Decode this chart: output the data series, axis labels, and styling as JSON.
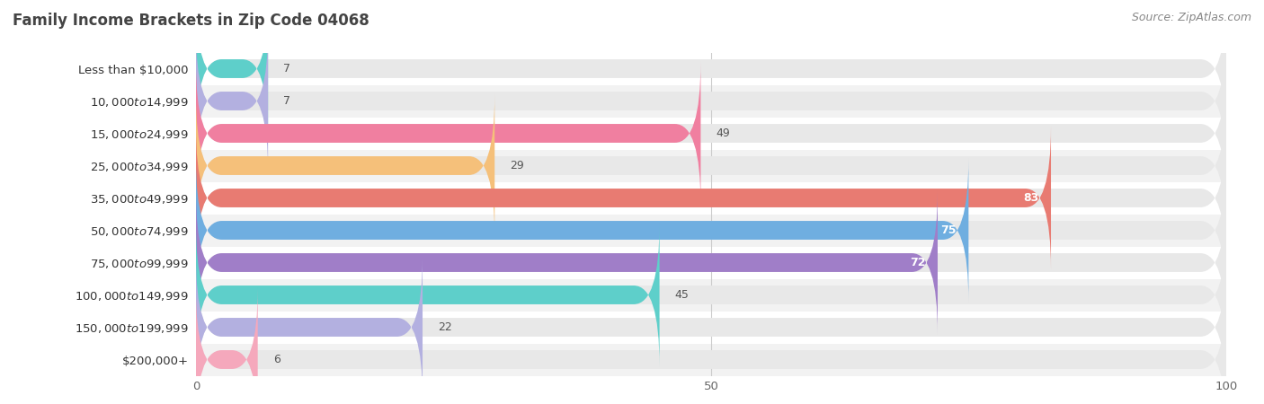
{
  "title": "Family Income Brackets in Zip Code 04068",
  "source": "Source: ZipAtlas.com",
  "categories": [
    "Less than $10,000",
    "$10,000 to $14,999",
    "$15,000 to $24,999",
    "$25,000 to $34,999",
    "$35,000 to $49,999",
    "$50,000 to $74,999",
    "$75,000 to $99,999",
    "$100,000 to $149,999",
    "$150,000 to $199,999",
    "$200,000+"
  ],
  "values": [
    7,
    7,
    49,
    29,
    83,
    75,
    72,
    45,
    22,
    6
  ],
  "bar_colors": [
    "#5ecfca",
    "#b3b0e0",
    "#f07fa0",
    "#f5c07a",
    "#e87b72",
    "#6faee0",
    "#a07ec8",
    "#5ecfca",
    "#b3b0e0",
    "#f5a8bc"
  ],
  "bar_bg_color": "#e8e8e8",
  "xlim": [
    0,
    100
  ],
  "xticks": [
    0,
    50,
    100
  ],
  "title_fontsize": 12,
  "label_fontsize": 9.5,
  "value_fontsize": 9,
  "source_fontsize": 9,
  "background_color": "#ffffff",
  "row_bg_colors": [
    "#f2f2f2",
    "#ffffff"
  ],
  "value_threshold_inside": 70
}
